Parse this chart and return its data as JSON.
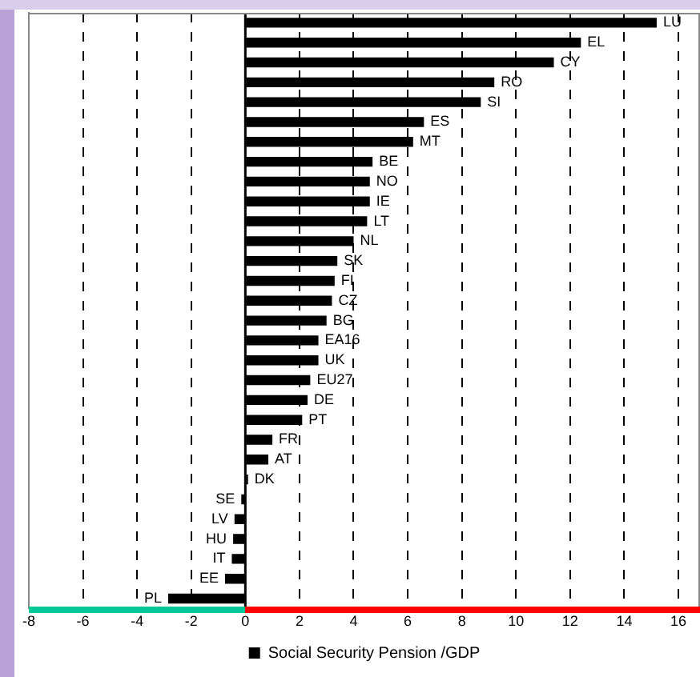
{
  "chart_data": {
    "type": "bar",
    "orientation": "horizontal",
    "categories": [
      "LU",
      "EL",
      "CY",
      "RO",
      "SI",
      "ES",
      "MT",
      "BE",
      "NO",
      "IE",
      "LT",
      "NL",
      "SK",
      "FI",
      "CZ",
      "BG",
      "EA16",
      "UK",
      "EU27",
      "DE",
      "PT",
      "FR",
      "AT",
      "DK",
      "SE",
      "LV",
      "HU",
      "IT",
      "EE",
      "PL"
    ],
    "series": [
      {
        "name": "Social Security Pension /GDP",
        "color": "#000000",
        "values": [
          15.2,
          12.4,
          11.4,
          9.2,
          8.7,
          6.6,
          6.2,
          4.7,
          4.6,
          4.6,
          4.5,
          4.0,
          3.4,
          3.3,
          3.2,
          3.0,
          2.7,
          2.7,
          2.4,
          2.3,
          2.1,
          1.0,
          0.85,
          0.1,
          -0.15,
          -0.4,
          -0.45,
          -0.5,
          -0.75,
          -2.85
        ]
      }
    ],
    "xlim": [
      -8,
      16.8
    ],
    "xticks": [
      -8,
      -6,
      -4,
      -2,
      0,
      2,
      4,
      6,
      8,
      10,
      12,
      14,
      16
    ],
    "grid": "x",
    "legend": "bottom",
    "tick_labels": "x",
    "ref_lines": [
      {
        "axis": "x",
        "value": 0,
        "color": "#000000"
      }
    ]
  }
}
